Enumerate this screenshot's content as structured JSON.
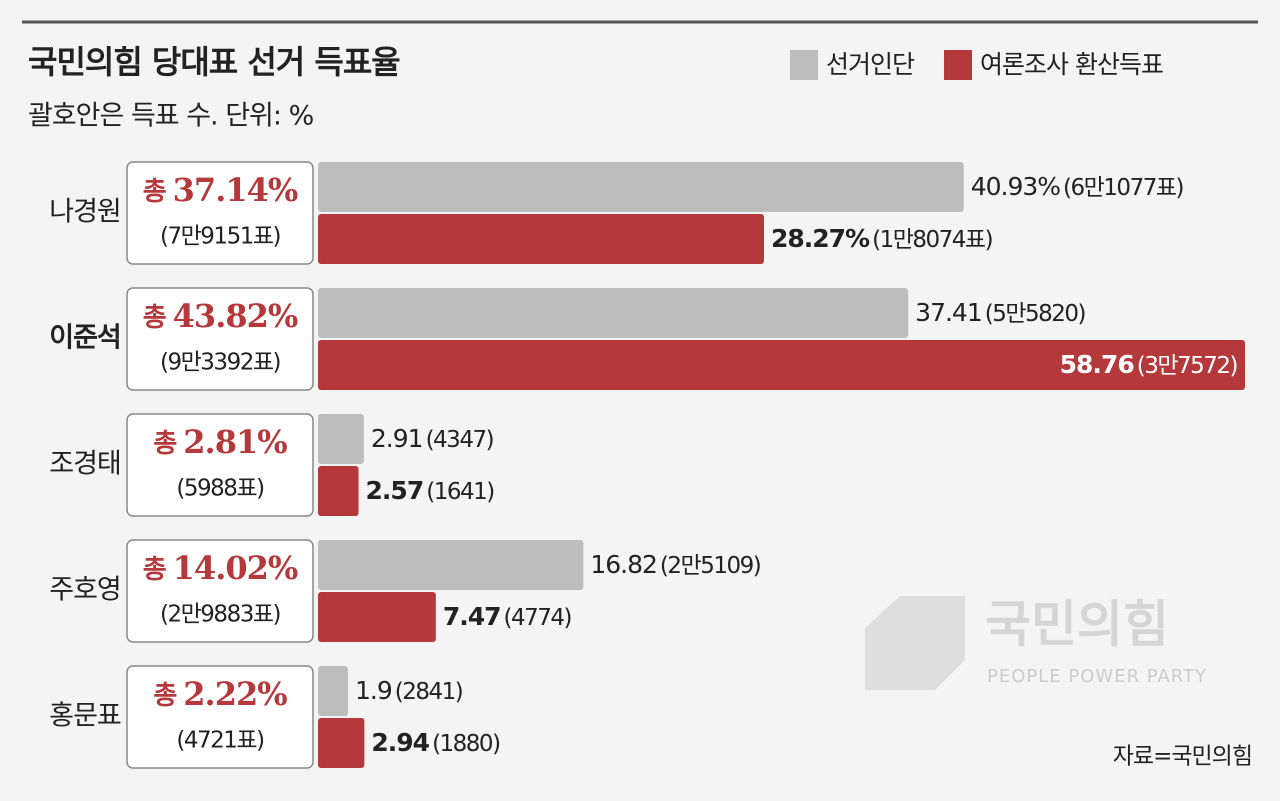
{
  "chart_data": {
    "type": "bar",
    "orientation": "horizontal",
    "title": "국민의힘 당대표 선거 득표율",
    "subtitle": "괄호안은 득표 수. 단위: %",
    "categories": [
      "나경원",
      "이준석",
      "조경태",
      "주호영",
      "홍문표"
    ],
    "bold_category_index": 1,
    "series": [
      {
        "name": "선거인단",
        "color": "#bdbdbd",
        "values": [
          40.93,
          37.41,
          2.91,
          16.82,
          1.9
        ],
        "value_labels": [
          "40.93%",
          "37.41",
          "2.91",
          "16.82",
          "1.9"
        ],
        "vote_labels": [
          "(6만1077표)",
          "(5만5820)",
          "(4347)",
          "(2만5109)",
          "(2841)"
        ]
      },
      {
        "name": "여론조사 환산득표",
        "color": "#b5393b",
        "values": [
          28.27,
          58.76,
          2.57,
          7.47,
          2.94
        ],
        "value_labels": [
          "28.27%",
          "58.76",
          "2.57",
          "7.47",
          "2.94"
        ],
        "vote_labels": [
          "(1만8074표)",
          "(3만7572)",
          "(1641)",
          "(4774)",
          "(1880)"
        ]
      }
    ],
    "totals": {
      "prefix": "총",
      "values": [
        37.14,
        43.82,
        2.81,
        14.02,
        2.22
      ],
      "value_labels": [
        "37.14%",
        "43.82%",
        "2.81%",
        "14.02%",
        "2.22%"
      ],
      "vote_labels": [
        "(7만9151표)",
        "(9만3392표)",
        "(5988표)",
        "(2만9883표)",
        "(4721표)"
      ]
    },
    "source": "자료=국민의힘",
    "watermark": {
      "name": "국민의힘",
      "tagline": "PEOPLE POWER PARTY"
    }
  }
}
